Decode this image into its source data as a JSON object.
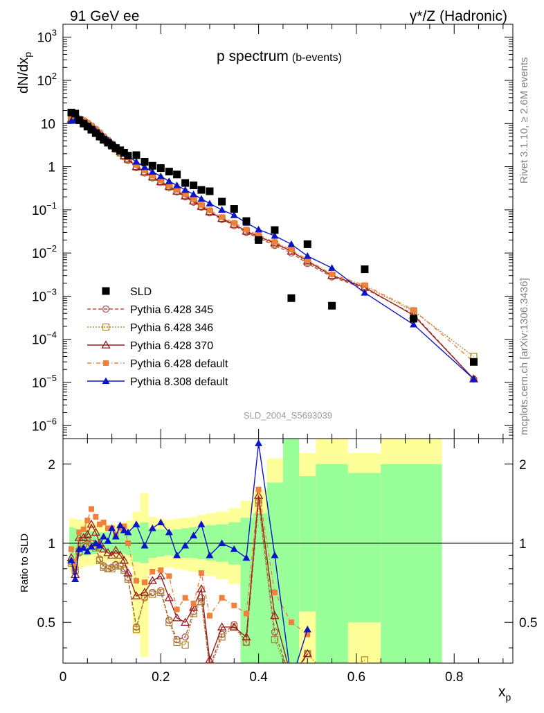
{
  "header": {
    "left": "91 GeV ee",
    "right": "γ*/Z (Hadronic)"
  },
  "main_plot": {
    "title": "p spectrum",
    "title_sub": "(b-events)",
    "ylabel": "dN/dx",
    "ylabel_sub": "p",
    "watermark": "SLD_2004_S5693039"
  },
  "side_texts": {
    "top": "Rivet 3.1.10, ≥ 2.6M events",
    "bottom": "mcplots.cern.ch [arXiv:1306.3436]"
  },
  "ratio_plot": {
    "ylabel": "Ratio to SLD",
    "yticks": [
      "0.5",
      "1",
      "2"
    ]
  },
  "xaxis": {
    "label": "x",
    "label_sub": "p",
    "ticks": [
      "0",
      "0.2",
      "0.4",
      "0.6",
      "0.8"
    ]
  },
  "main_yticks": [
    {
      "b": "10",
      "e": "3"
    },
    {
      "b": "10",
      "e": "2"
    },
    {
      "b": "10",
      "e": ""
    },
    {
      "b": "1",
      "e": ""
    },
    {
      "b": "10",
      "e": "−1"
    },
    {
      "b": "10",
      "e": "−2"
    },
    {
      "b": "10",
      "e": "−3"
    },
    {
      "b": "10",
      "e": "−4"
    },
    {
      "b": "10",
      "e": "−5"
    },
    {
      "b": "10",
      "e": "−6"
    }
  ],
  "chart_data": {
    "type": "scatter",
    "xlim": [
      0,
      0.92
    ],
    "ylim": [
      5e-07,
      2000
    ],
    "yscale": "log",
    "ratio_ylim": [
      0.35,
      2.5
    ],
    "ratio_yscale": "log",
    "legend_position": "bottom-left",
    "data": {
      "name": "SLD",
      "color": "#000000",
      "x": [
        0.017,
        0.025,
        0.033,
        0.042,
        0.05,
        0.058,
        0.067,
        0.075,
        0.083,
        0.092,
        0.1,
        0.108,
        0.117,
        0.125,
        0.133,
        0.15,
        0.167,
        0.183,
        0.2,
        0.217,
        0.233,
        0.25,
        0.267,
        0.283,
        0.3,
        0.325,
        0.35,
        0.375,
        0.4,
        0.433,
        0.467,
        0.5,
        0.55,
        0.617,
        0.717,
        0.84
      ],
      "y": [
        18,
        17,
        12,
        10,
        8.5,
        7.2,
        6,
        5,
        4.2,
        3.6,
        3.1,
        2.7,
        2.4,
        2.1,
        1.8,
        1.85,
        1.3,
        1.05,
        0.93,
        0.77,
        0.66,
        0.42,
        0.37,
        0.29,
        0.27,
        0.155,
        0.105,
        0.055,
        0.02,
        0.034,
        0.0009,
        0.016,
        0.0006,
        0.0042,
        0.0003,
        3e-05
      ]
    },
    "ratio_bands": [
      {
        "x0": 0.013,
        "x1": 0.021,
        "in": [
          0.87,
          1.15
        ],
        "out": [
          0.78,
          1.25
        ]
      },
      {
        "x0": 0.021,
        "x1": 0.029,
        "in": [
          0.88,
          1.14
        ],
        "out": [
          0.79,
          1.24
        ]
      },
      {
        "x0": 0.029,
        "x1": 0.038,
        "in": [
          0.89,
          1.13
        ],
        "out": [
          0.8,
          1.23
        ]
      },
      {
        "x0": 0.038,
        "x1": 0.046,
        "in": [
          0.9,
          1.12
        ],
        "out": [
          0.81,
          1.22
        ]
      },
      {
        "x0": 0.046,
        "x1": 0.054,
        "in": [
          0.9,
          1.12
        ],
        "out": [
          0.82,
          1.21
        ]
      },
      {
        "x0": 0.054,
        "x1": 0.063,
        "in": [
          0.91,
          1.11
        ],
        "out": [
          0.82,
          1.2
        ]
      },
      {
        "x0": 0.063,
        "x1": 0.071,
        "in": [
          0.91,
          1.11
        ],
        "out": [
          0.83,
          1.2
        ]
      },
      {
        "x0": 0.071,
        "x1": 0.079,
        "in": [
          0.92,
          1.1
        ],
        "out": [
          0.84,
          1.19
        ]
      },
      {
        "x0": 0.079,
        "x1": 0.088,
        "in": [
          0.92,
          1.1
        ],
        "out": [
          0.84,
          1.19
        ]
      },
      {
        "x0": 0.088,
        "x1": 0.096,
        "in": [
          0.92,
          1.1
        ],
        "out": [
          0.85,
          1.18
        ]
      },
      {
        "x0": 0.096,
        "x1": 0.104,
        "in": [
          0.92,
          1.1
        ],
        "out": [
          0.85,
          1.18
        ]
      },
      {
        "x0": 0.104,
        "x1": 0.113,
        "in": [
          0.92,
          1.1
        ],
        "out": [
          0.85,
          1.18
        ]
      },
      {
        "x0": 0.113,
        "x1": 0.121,
        "in": [
          0.91,
          1.11
        ],
        "out": [
          0.84,
          1.19
        ]
      },
      {
        "x0": 0.121,
        "x1": 0.129,
        "in": [
          0.91,
          1.11
        ],
        "out": [
          0.84,
          1.2
        ]
      },
      {
        "x0": 0.129,
        "x1": 0.142,
        "in": [
          0.9,
          1.12
        ],
        "out": [
          0.82,
          1.22
        ]
      },
      {
        "x0": 0.142,
        "x1": 0.158,
        "in": [
          0.85,
          1.18
        ],
        "out": [
          0.45,
          1.32
        ]
      },
      {
        "x0": 0.158,
        "x1": 0.175,
        "in": [
          0.84,
          1.2
        ],
        "out": [
          0.37,
          1.55
        ]
      },
      {
        "x0": 0.175,
        "x1": 0.192,
        "in": [
          0.88,
          1.14
        ],
        "out": [
          0.78,
          1.26
        ]
      },
      {
        "x0": 0.192,
        "x1": 0.208,
        "in": [
          0.89,
          1.13
        ],
        "out": [
          0.8,
          1.24
        ]
      },
      {
        "x0": 0.208,
        "x1": 0.225,
        "in": [
          0.9,
          1.12
        ],
        "out": [
          0.81,
          1.23
        ]
      },
      {
        "x0": 0.225,
        "x1": 0.242,
        "in": [
          0.89,
          1.13
        ],
        "out": [
          0.8,
          1.24
        ]
      },
      {
        "x0": 0.242,
        "x1": 0.258,
        "in": [
          0.88,
          1.14
        ],
        "out": [
          0.79,
          1.25
        ]
      },
      {
        "x0": 0.258,
        "x1": 0.275,
        "in": [
          0.88,
          1.15
        ],
        "out": [
          0.78,
          1.26
        ]
      },
      {
        "x0": 0.275,
        "x1": 0.292,
        "in": [
          0.87,
          1.16
        ],
        "out": [
          0.77,
          1.28
        ]
      },
      {
        "x0": 0.292,
        "x1": 0.313,
        "in": [
          0.86,
          1.17
        ],
        "out": [
          0.75,
          1.3
        ]
      },
      {
        "x0": 0.313,
        "x1": 0.338,
        "in": [
          0.85,
          1.18
        ],
        "out": [
          0.73,
          1.32
        ]
      },
      {
        "x0": 0.338,
        "x1": 0.363,
        "in": [
          0.83,
          1.2
        ],
        "out": [
          0.7,
          1.36
        ]
      },
      {
        "x0": 0.363,
        "x1": 0.388,
        "in": [
          0.35,
          1.25
        ],
        "out": [
          0.35,
          1.45
        ]
      },
      {
        "x0": 0.388,
        "x1": 0.417,
        "in": [
          0.35,
          1.3
        ],
        "out": [
          0.35,
          1.6
        ]
      },
      {
        "x0": 0.417,
        "x1": 0.45,
        "in": [
          0.35,
          1.7
        ],
        "out": [
          0.35,
          2.1
        ]
      },
      {
        "x0": 0.45,
        "x1": 0.483,
        "in": [
          0.35,
          2.5
        ],
        "out": [
          0.35,
          2.5
        ]
      },
      {
        "x0": 0.483,
        "x1": 0.517,
        "in": [
          0.55,
          1.8
        ],
        "out": [
          0.35,
          2.2
        ]
      },
      {
        "x0": 0.517,
        "x1": 0.583,
        "in": [
          0.35,
          2.0
        ],
        "out": [
          0.35,
          2.5
        ]
      },
      {
        "x0": 0.583,
        "x1": 0.65,
        "in": [
          0.5,
          1.85
        ],
        "out": [
          0.35,
          2.2
        ]
      },
      {
        "x0": 0.65,
        "x1": 0.775,
        "in": [
          0.35,
          2.0
        ],
        "out": [
          0.35,
          2.5
        ]
      }
    ],
    "series": [
      {
        "name": "Pythia 6.428 345",
        "color": "#b0504c",
        "dash": "5,3",
        "marker": "circle-open",
        "x": [
          0.017,
          0.025,
          0.033,
          0.042,
          0.05,
          0.058,
          0.067,
          0.075,
          0.083,
          0.092,
          0.1,
          0.108,
          0.117,
          0.125,
          0.133,
          0.15,
          0.167,
          0.183,
          0.2,
          0.217,
          0.233,
          0.25,
          0.267,
          0.283,
          0.3,
          0.325,
          0.35,
          0.375,
          0.4,
          0.433,
          0.467,
          0.5,
          0.55,
          0.617,
          0.717,
          0.84
        ],
        "y": [
          12,
          13,
          12,
          11,
          9.5,
          8.2,
          6.8,
          5.6,
          4.5,
          3.6,
          3.0,
          2.5,
          2.05,
          1.7,
          1.4,
          0.95,
          0.72,
          0.55,
          0.43,
          0.33,
          0.26,
          0.2,
          0.15,
          0.115,
          0.085,
          0.06,
          0.043,
          0.03,
          0.022,
          0.015,
          0.01,
          0.0057,
          0.0028,
          0.0015,
          0.00038,
          1.2e-05
        ],
        "ratio": [
          0.85,
          0.78,
          0.92,
          0.98,
          1.02,
          1.0,
          0.97,
          0.87,
          0.82,
          0.8,
          0.81,
          0.83,
          0.82,
          0.8,
          0.74,
          0.48,
          0.62,
          0.65,
          0.66,
          0.51,
          0.43,
          0.44,
          0.55,
          0.62,
          0.34,
          0.45,
          0.49,
          0.42,
          1.45,
          0.46,
          0.3,
          0.38
        ]
      },
      {
        "name": "Pythia 6.428 346",
        "color": "#b08a30",
        "dash": "2,2",
        "marker": "square-open",
        "x": [
          0.017,
          0.025,
          0.033,
          0.042,
          0.05,
          0.058,
          0.067,
          0.075,
          0.083,
          0.092,
          0.1,
          0.108,
          0.117,
          0.125,
          0.133,
          0.15,
          0.167,
          0.183,
          0.2,
          0.217,
          0.233,
          0.25,
          0.267,
          0.283,
          0.3,
          0.325,
          0.35,
          0.375,
          0.4,
          0.433,
          0.467,
          0.5,
          0.55,
          0.617,
          0.717,
          0.84
        ],
        "y": [
          12,
          13,
          12,
          11,
          9.5,
          8.2,
          6.8,
          5.6,
          4.6,
          3.7,
          3.05,
          2.55,
          2.1,
          1.75,
          1.45,
          0.98,
          0.74,
          0.57,
          0.44,
          0.34,
          0.27,
          0.21,
          0.16,
          0.12,
          0.09,
          0.063,
          0.046,
          0.032,
          0.023,
          0.016,
          0.011,
          0.006,
          0.003,
          0.0017,
          0.00045,
          4e-05
        ],
        "ratio": [
          0.84,
          0.79,
          0.93,
          1.0,
          1.03,
          1.0,
          0.96,
          0.86,
          0.81,
          0.8,
          0.8,
          0.82,
          0.82,
          0.79,
          0.73,
          0.47,
          0.63,
          0.64,
          0.65,
          0.5,
          0.42,
          0.41,
          0.54,
          0.6,
          0.33,
          0.44,
          0.48,
          0.42,
          1.42,
          0.43,
          0.3,
          0.38,
          0.3,
          0.36
        ]
      },
      {
        "name": "Pythia 6.428 370",
        "color": "#9b1c1c",
        "dash": "",
        "marker": "triangle-open",
        "x": [
          0.017,
          0.025,
          0.033,
          0.042,
          0.05,
          0.058,
          0.067,
          0.075,
          0.083,
          0.092,
          0.1,
          0.108,
          0.117,
          0.125,
          0.133,
          0.15,
          0.167,
          0.183,
          0.2,
          0.217,
          0.233,
          0.25,
          0.267,
          0.283,
          0.3,
          0.325,
          0.35,
          0.375,
          0.4,
          0.433,
          0.467,
          0.5,
          0.55,
          0.617,
          0.717,
          0.84
        ],
        "y": [
          12.5,
          13.5,
          12.5,
          11.5,
          10,
          8.6,
          7.1,
          5.9,
          4.8,
          3.9,
          3.2,
          2.65,
          2.2,
          1.8,
          1.5,
          1.0,
          0.76,
          0.58,
          0.45,
          0.35,
          0.27,
          0.21,
          0.16,
          0.12,
          0.09,
          0.063,
          0.046,
          0.032,
          0.024,
          0.017,
          0.011,
          0.0065,
          0.003,
          0.0016,
          0.00036,
          1.2e-05
        ],
        "ratio": [
          0.88,
          0.76,
          1.05,
          1.05,
          1.08,
          1.18,
          1.1,
          1.0,
          0.95,
          0.92,
          0.9,
          0.94,
          0.9,
          0.86,
          0.77,
          0.63,
          0.65,
          0.72,
          0.75,
          0.62,
          0.52,
          0.5,
          0.57,
          0.67,
          0.36,
          0.48,
          0.48,
          0.44,
          1.52,
          0.53,
          0.31,
          0.38
        ]
      },
      {
        "name": "Pythia 6.428 default",
        "color": "#f0803c",
        "dash": "6,3,1,3",
        "marker": "square-filled",
        "x": [
          0.017,
          0.025,
          0.033,
          0.042,
          0.05,
          0.058,
          0.067,
          0.075,
          0.083,
          0.092,
          0.1,
          0.108,
          0.117,
          0.125,
          0.133,
          0.15,
          0.167,
          0.183,
          0.2,
          0.217,
          0.233,
          0.25,
          0.267,
          0.283,
          0.3,
          0.325,
          0.35,
          0.375,
          0.4,
          0.433,
          0.467,
          0.5,
          0.55,
          0.617,
          0.717,
          0.84
        ],
        "y": [
          13,
          14,
          13,
          12,
          10.5,
          9,
          7.5,
          6.2,
          5.1,
          4.2,
          3.5,
          2.9,
          2.4,
          2.0,
          1.65,
          1.1,
          0.82,
          0.62,
          0.48,
          0.37,
          0.29,
          0.23,
          0.175,
          0.13,
          0.098,
          0.068,
          0.05,
          0.035,
          0.026,
          0.018,
          0.012,
          0.007,
          0.0032,
          0.0018,
          0.00048,
          3e-05
        ],
        "ratio": [
          0.95,
          0.84,
          1.1,
          1.13,
          1.22,
          1.35,
          1.26,
          1.18,
          1.2,
          1.14,
          1.14,
          1.08,
          1.14,
          1.16,
          1.0,
          0.72,
          0.71,
          0.78,
          0.79,
          0.75,
          0.56,
          0.62,
          0.59,
          0.77,
          0.53,
          0.62,
          0.58,
          0.54,
          1.6,
          0.65,
          0.5,
          0.45
        ]
      },
      {
        "name": "Pythia 8.308 default",
        "color": "#0a14c8",
        "dash": "",
        "marker": "triangle-filled",
        "x": [
          0.017,
          0.025,
          0.033,
          0.042,
          0.05,
          0.058,
          0.067,
          0.075,
          0.083,
          0.092,
          0.1,
          0.108,
          0.117,
          0.125,
          0.133,
          0.15,
          0.167,
          0.183,
          0.2,
          0.217,
          0.233,
          0.25,
          0.267,
          0.283,
          0.3,
          0.325,
          0.35,
          0.375,
          0.4,
          0.433,
          0.467,
          0.5,
          0.55,
          0.617,
          0.717,
          0.84
        ],
        "y": [
          11.5,
          12,
          11.5,
          10.5,
          9.2,
          8,
          6.8,
          5.8,
          4.9,
          4.1,
          3.45,
          2.9,
          2.45,
          2.05,
          1.75,
          1.3,
          0.98,
          0.76,
          0.6,
          0.46,
          0.37,
          0.29,
          0.23,
          0.18,
          0.14,
          0.1,
          0.075,
          0.05,
          0.035,
          0.025,
          0.016,
          0.0085,
          0.0045,
          0.0012,
          0.00022,
          1.2e-05
        ],
        "ratio": [
          0.86,
          0.73,
          0.95,
          0.96,
          0.93,
          0.97,
          1.0,
          0.98,
          1.06,
          1.02,
          1.14,
          1.06,
          1.17,
          1.12,
          1.1,
          1.18,
          0.98,
          1.14,
          1.2,
          1.1,
          0.9,
          0.98,
          1.07,
          1.18,
          0.9,
          1.0,
          0.95,
          0.88,
          2.4,
          0.9,
          0.3,
          0.47
        ]
      }
    ]
  }
}
